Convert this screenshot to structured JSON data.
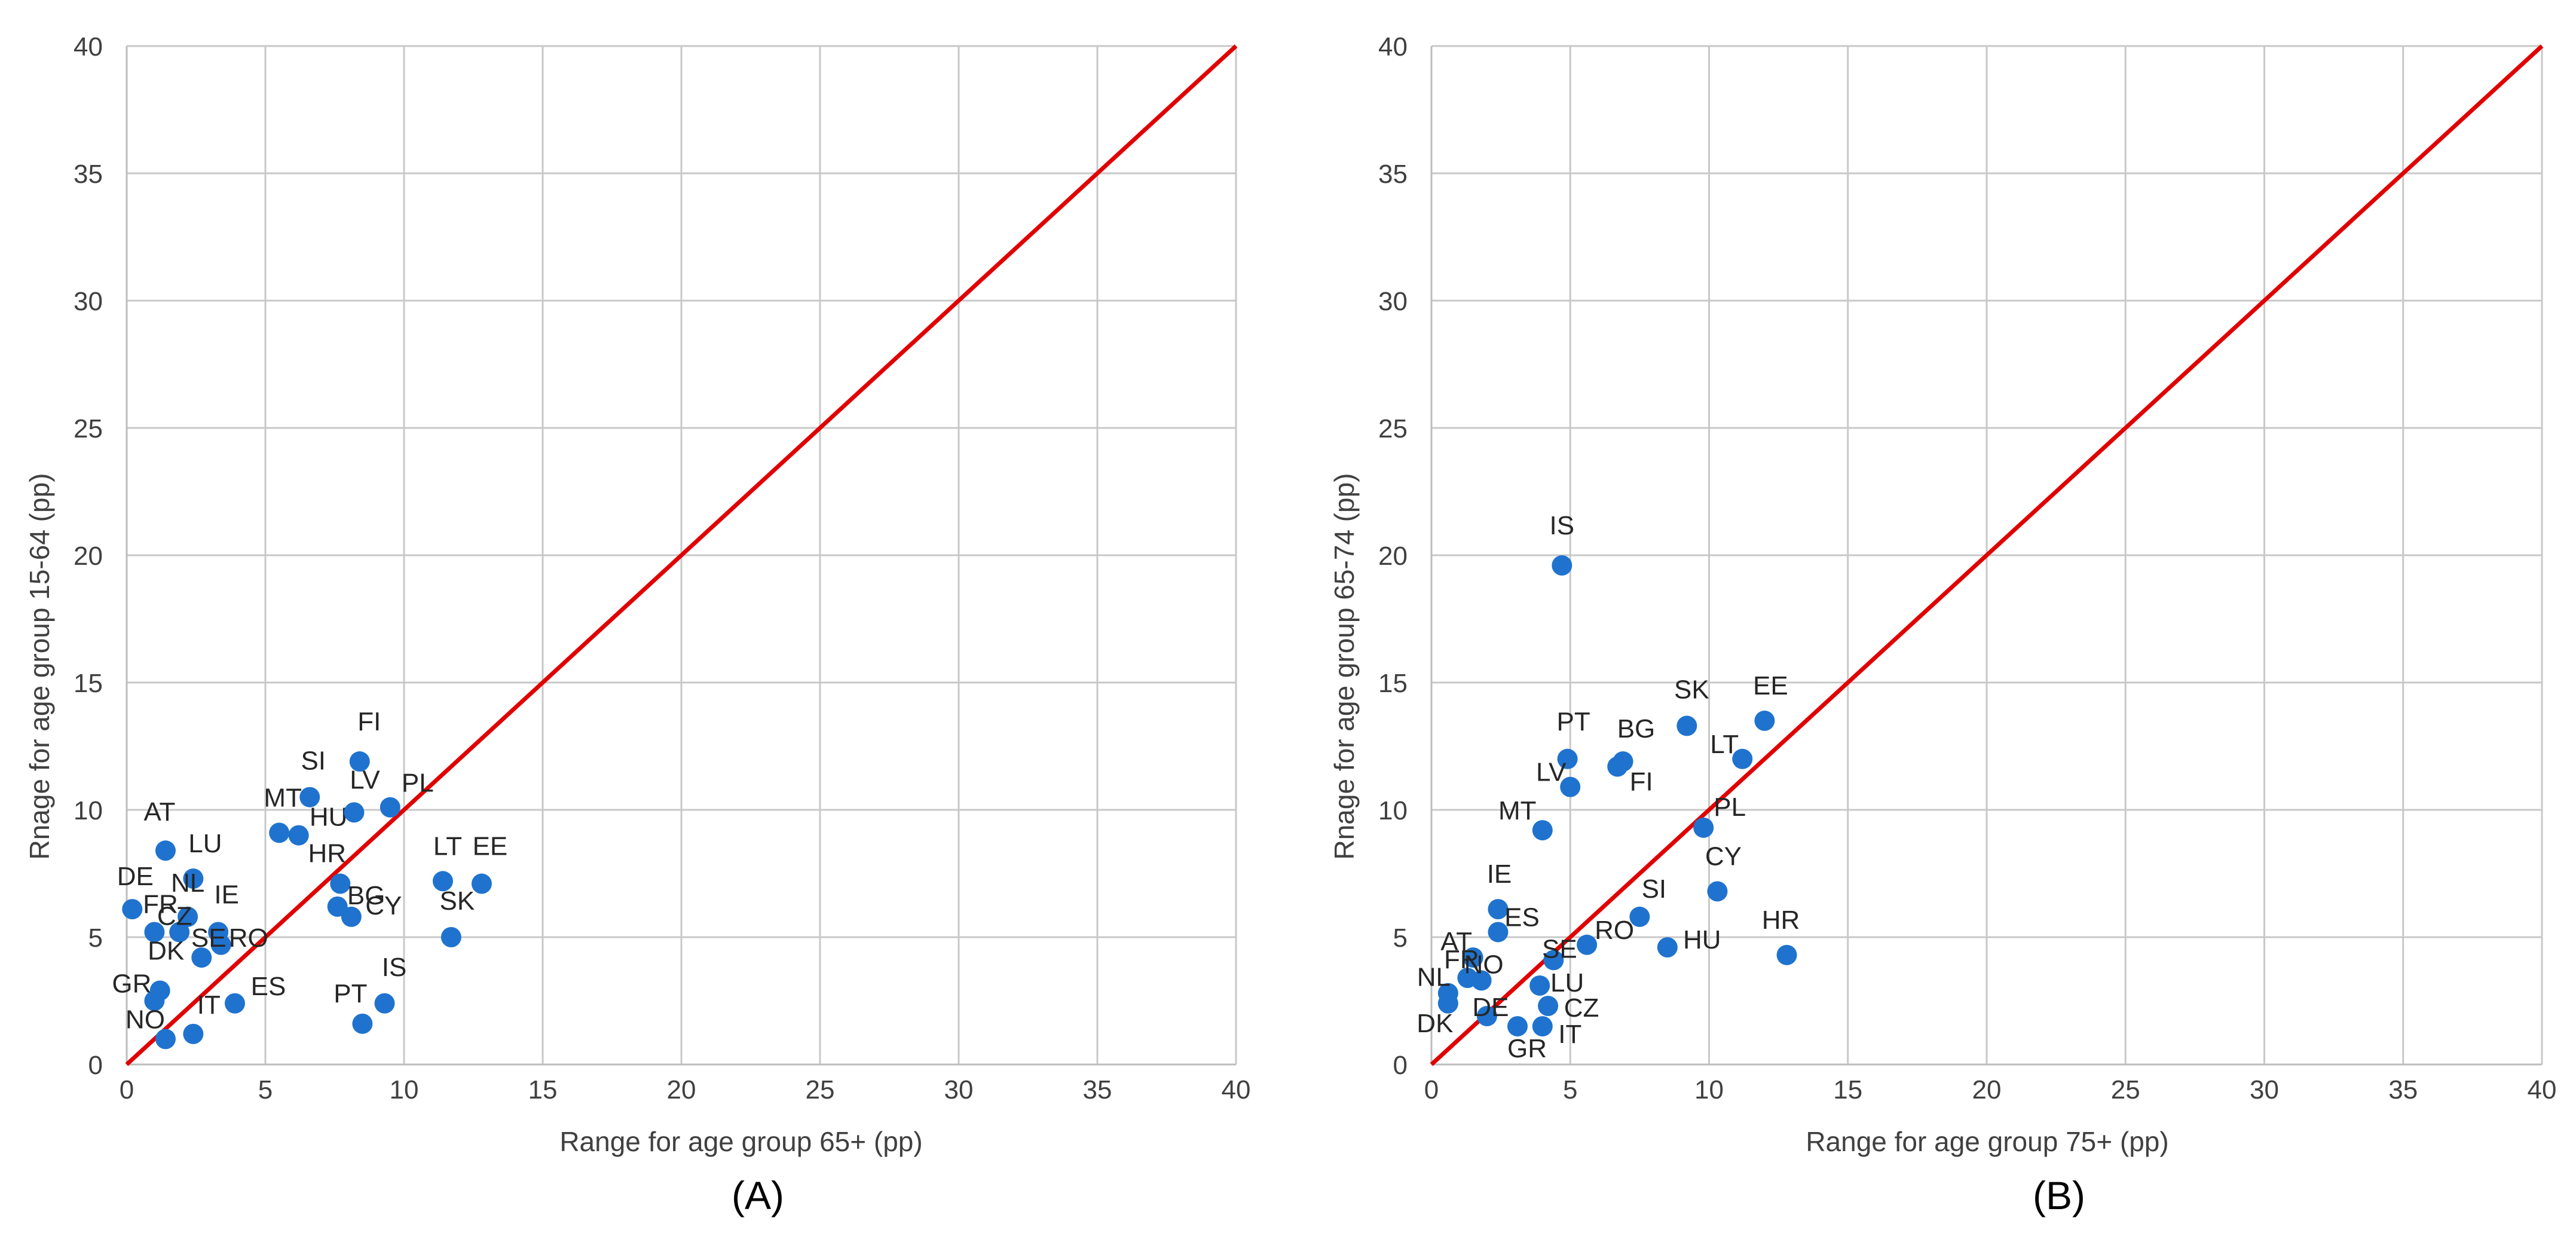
{
  "colors": {
    "point": "#1f73cf",
    "diagonal": "#e00000",
    "grid": "#c8c8c8",
    "text": "#404040"
  },
  "chart_data": [
    {
      "type": "scatter",
      "panel": "(A)",
      "xlabel": "Range for age group 65+ (pp)",
      "ylabel": "Rnage for age group 15-64 (pp)",
      "xlim": [
        0,
        40
      ],
      "ylim": [
        0,
        40
      ],
      "xticks": [
        "0",
        "5",
        "10",
        "15",
        "20",
        "25",
        "30",
        "35",
        "40"
      ],
      "yticks": [
        "0",
        "5",
        "10",
        "15",
        "20",
        "25",
        "30",
        "35",
        "40"
      ],
      "reference_line": "y = x",
      "grid": true,
      "points": [
        {
          "label": "AT",
          "x": 1.4,
          "y": 8.4
        },
        {
          "label": "LU",
          "x": 2.4,
          "y": 7.3
        },
        {
          "label": "DE",
          "x": 0.2,
          "y": 6.1
        },
        {
          "label": "NL",
          "x": 2.2,
          "y": 5.8
        },
        {
          "label": "FR",
          "x": 1.0,
          "y": 5.2
        },
        {
          "label": "CZ",
          "x": 1.9,
          "y": 5.2
        },
        {
          "label": "IE",
          "x": 3.3,
          "y": 5.2
        },
        {
          "label": "RO",
          "x": 3.4,
          "y": 4.7
        },
        {
          "label": "SE",
          "x": 2.7,
          "y": 4.2
        },
        {
          "label": "DK",
          "x": 1.2,
          "y": 2.9
        },
        {
          "label": "GR",
          "x": 1.0,
          "y": 2.5
        },
        {
          "label": "NO",
          "x": 1.4,
          "y": 1.0
        },
        {
          "label": "IT",
          "x": 2.4,
          "y": 1.2
        },
        {
          "label": "ES",
          "x": 3.9,
          "y": 2.4
        },
        {
          "label": "SI",
          "x": 6.6,
          "y": 10.5
        },
        {
          "label": "MT",
          "x": 5.5,
          "y": 9.1
        },
        {
          "label": "HU",
          "x": 6.2,
          "y": 9.0
        },
        {
          "label": "FI",
          "x": 8.4,
          "y": 11.9
        },
        {
          "label": "LV",
          "x": 8.2,
          "y": 9.9
        },
        {
          "label": "PL",
          "x": 9.5,
          "y": 10.1
        },
        {
          "label": "HR",
          "x": 7.7,
          "y": 7.1
        },
        {
          "label": "BG",
          "x": 7.6,
          "y": 6.2
        },
        {
          "label": "CY",
          "x": 8.1,
          "y": 5.8
        },
        {
          "label": "PT",
          "x": 8.5,
          "y": 1.6
        },
        {
          "label": "IS",
          "x": 9.3,
          "y": 2.4
        },
        {
          "label": "LT",
          "x": 11.4,
          "y": 7.2
        },
        {
          "label": "EE",
          "x": 12.8,
          "y": 7.1
        },
        {
          "label": "SK",
          "x": 11.7,
          "y": 5.0
        }
      ]
    },
    {
      "type": "scatter",
      "panel": "(B)",
      "xlabel": "Range for age group 75+ (pp)",
      "ylabel": "Rnage for age group 65-74 (pp)",
      "xlim": [
        0,
        40
      ],
      "ylim": [
        0,
        40
      ],
      "xticks": [
        "0",
        "5",
        "10",
        "15",
        "20",
        "25",
        "30",
        "35",
        "40"
      ],
      "yticks": [
        "0",
        "5",
        "10",
        "15",
        "20",
        "25",
        "30",
        "35",
        "40"
      ],
      "reference_line": "y = x",
      "grid": true,
      "points": [
        {
          "label": "IS",
          "x": 4.7,
          "y": 19.6
        },
        {
          "label": "SK",
          "x": 9.2,
          "y": 13.3
        },
        {
          "label": "EE",
          "x": 12.0,
          "y": 13.5
        },
        {
          "label": "PT",
          "x": 4.9,
          "y": 12.0
        },
        {
          "label": "BG",
          "x": 6.9,
          "y": 11.9
        },
        {
          "label": "FI",
          "x": 6.7,
          "y": 11.7
        },
        {
          "label": "LT",
          "x": 11.2,
          "y": 12.0
        },
        {
          "label": "LV",
          "x": 5.0,
          "y": 10.9
        },
        {
          "label": "MT",
          "x": 4.0,
          "y": 9.2
        },
        {
          "label": "PL",
          "x": 9.8,
          "y": 9.3
        },
        {
          "label": "CY",
          "x": 10.3,
          "y": 6.8
        },
        {
          "label": "IE",
          "x": 2.4,
          "y": 6.1
        },
        {
          "label": "SI",
          "x": 7.5,
          "y": 5.8
        },
        {
          "label": "ES",
          "x": 2.4,
          "y": 5.2
        },
        {
          "label": "AT",
          "x": 1.5,
          "y": 4.2
        },
        {
          "label": "SE",
          "x": 4.4,
          "y": 4.1
        },
        {
          "label": "RO",
          "x": 5.6,
          "y": 4.7
        },
        {
          "label": "HU",
          "x": 8.5,
          "y": 4.6
        },
        {
          "label": "HR",
          "x": 12.8,
          "y": 4.3
        },
        {
          "label": "FR",
          "x": 1.3,
          "y": 3.4
        },
        {
          "label": "NO",
          "x": 1.8,
          "y": 3.3
        },
        {
          "label": "NL",
          "x": 0.6,
          "y": 2.8
        },
        {
          "label": "LU",
          "x": 3.9,
          "y": 3.1
        },
        {
          "label": "DK",
          "x": 0.6,
          "y": 2.4
        },
        {
          "label": "DE",
          "x": 2.0,
          "y": 1.9
        },
        {
          "label": "CZ",
          "x": 4.2,
          "y": 2.3
        },
        {
          "label": "GR",
          "x": 3.1,
          "y": 1.5
        },
        {
          "label": "IT",
          "x": 4.0,
          "y": 1.5
        }
      ]
    }
  ]
}
